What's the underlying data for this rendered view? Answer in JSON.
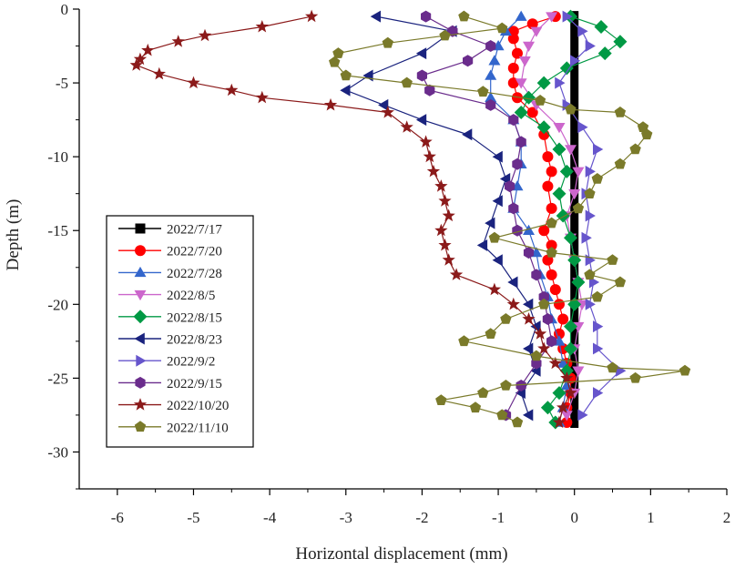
{
  "chart_data": {
    "type": "line",
    "title": "",
    "xlabel": "Horizontal displacement (mm)",
    "ylabel": "Depth (m)",
    "xlim": [
      -6.5,
      2
    ],
    "ylim": [
      -32.5,
      0
    ],
    "xticks": [
      -6,
      -5,
      -4,
      -3,
      -2,
      -1,
      0,
      1,
      2
    ],
    "yticks": [
      0,
      -5,
      -10,
      -15,
      -20,
      -25,
      -30
    ],
    "xtick_labels": [
      "-6",
      "-5",
      "-4",
      "-3",
      "-2",
      "-1",
      "0",
      "1",
      "2"
    ],
    "ytick_labels": [
      "0",
      "-5",
      "-10",
      "-15",
      "-20",
      "-25",
      "-30"
    ],
    "legend_position": "left-middle",
    "series": [
      {
        "name": "2022/7/17",
        "color": "#000000",
        "marker": "square",
        "points": [
          [
            0,
            -0.5
          ],
          [
            0,
            -28
          ]
        ]
      },
      {
        "name": "2022/7/20",
        "color": "#ff0000",
        "marker": "circle",
        "points": [
          [
            -0.25,
            -0.5
          ],
          [
            -0.55,
            -1
          ],
          [
            -0.8,
            -1.5
          ],
          [
            -0.8,
            -2
          ],
          [
            -0.75,
            -3
          ],
          [
            -0.8,
            -4
          ],
          [
            -0.8,
            -5
          ],
          [
            -0.75,
            -6
          ],
          [
            -0.55,
            -7
          ],
          [
            -0.4,
            -8.5
          ],
          [
            -0.35,
            -10
          ],
          [
            -0.3,
            -11
          ],
          [
            -0.35,
            -12
          ],
          [
            -0.3,
            -13.5
          ],
          [
            -0.4,
            -15
          ],
          [
            -0.3,
            -16
          ],
          [
            -0.35,
            -17
          ],
          [
            -0.3,
            -18
          ],
          [
            -0.25,
            -19
          ],
          [
            -0.2,
            -20
          ],
          [
            -0.15,
            -21
          ],
          [
            -0.2,
            -22
          ],
          [
            -0.15,
            -23
          ],
          [
            -0.1,
            -24
          ],
          [
            -0.05,
            -25
          ],
          [
            -0.05,
            -26
          ],
          [
            -0.1,
            -27
          ],
          [
            -0.1,
            -28
          ]
        ]
      },
      {
        "name": "2022/7/28",
        "color": "#3366cc",
        "marker": "triangle-up",
        "points": [
          [
            -0.7,
            -0.5
          ],
          [
            -0.9,
            -1.5
          ],
          [
            -1,
            -2.5
          ],
          [
            -1.05,
            -3.5
          ],
          [
            -1.1,
            -4.5
          ],
          [
            -1.1,
            -6
          ],
          [
            -0.8,
            -7.5
          ],
          [
            -0.7,
            -9
          ],
          [
            -0.7,
            -10.5
          ],
          [
            -0.75,
            -12
          ],
          [
            -0.8,
            -13.5
          ],
          [
            -0.6,
            -15
          ],
          [
            -0.5,
            -16.5
          ],
          [
            -0.45,
            -18
          ],
          [
            -0.35,
            -19.5
          ],
          [
            -0.3,
            -21
          ],
          [
            -0.2,
            -22.5
          ],
          [
            -0.15,
            -24
          ],
          [
            -0.1,
            -25.5
          ],
          [
            -0.15,
            -27
          ],
          [
            -0.2,
            -28
          ]
        ]
      },
      {
        "name": "2022/8/5",
        "color": "#cc66cc",
        "marker": "triangle-down",
        "points": [
          [
            -0.3,
            -0.5
          ],
          [
            -0.5,
            -1.5
          ],
          [
            -0.6,
            -2.5
          ],
          [
            -0.65,
            -3.5
          ],
          [
            -0.7,
            -5
          ],
          [
            -0.5,
            -6.5
          ],
          [
            -0.2,
            -8
          ],
          [
            -0.05,
            -9.5
          ],
          [
            0.05,
            -11
          ],
          [
            0,
            -12.5
          ],
          [
            -0.1,
            -14
          ],
          [
            -0.05,
            -15.5
          ],
          [
            0,
            -17
          ],
          [
            0.05,
            -18.5
          ],
          [
            0.1,
            -20
          ],
          [
            0.05,
            -21.5
          ],
          [
            0,
            -23
          ],
          [
            0.05,
            -24.5
          ],
          [
            0,
            -26
          ],
          [
            -0.1,
            -27.5
          ]
        ]
      },
      {
        "name": "2022/8/15",
        "color": "#009944",
        "marker": "diamond",
        "points": [
          [
            -0.05,
            -0.5
          ],
          [
            0.35,
            -1.2
          ],
          [
            0.6,
            -2.2
          ],
          [
            0.4,
            -3
          ],
          [
            -0.1,
            -4
          ],
          [
            -0.4,
            -5
          ],
          [
            -0.6,
            -6
          ],
          [
            -0.7,
            -7
          ],
          [
            -0.4,
            -8
          ],
          [
            -0.2,
            -9.5
          ],
          [
            -0.1,
            -11
          ],
          [
            -0.2,
            -12.5
          ],
          [
            -0.15,
            -14
          ],
          [
            -0.05,
            -15.5
          ],
          [
            0,
            -17
          ],
          [
            0.05,
            -18.5
          ],
          [
            0,
            -20
          ],
          [
            -0.05,
            -21.5
          ],
          [
            -0.05,
            -23
          ],
          [
            -0.1,
            -24.5
          ],
          [
            -0.2,
            -26
          ],
          [
            -0.35,
            -27
          ],
          [
            -0.25,
            -28
          ]
        ]
      },
      {
        "name": "2022/8/23",
        "color": "#1a237e",
        "marker": "triangle-left",
        "points": [
          [
            -2.6,
            -0.5
          ],
          [
            -1.6,
            -1.5
          ],
          [
            -2,
            -3
          ],
          [
            -2.7,
            -4.5
          ],
          [
            -3,
            -5.5
          ],
          [
            -2.5,
            -6.5
          ],
          [
            -2,
            -7.5
          ],
          [
            -1.4,
            -8.5
          ],
          [
            -1,
            -10
          ],
          [
            -0.9,
            -11.5
          ],
          [
            -1,
            -13
          ],
          [
            -1.1,
            -14.5
          ],
          [
            -1.2,
            -16
          ],
          [
            -1,
            -17
          ],
          [
            -0.8,
            -18.5
          ],
          [
            -0.6,
            -20
          ],
          [
            -0.5,
            -21.5
          ],
          [
            -0.6,
            -23
          ],
          [
            -0.5,
            -24.5
          ],
          [
            -0.7,
            -26
          ],
          [
            -0.6,
            -27.5
          ]
        ]
      },
      {
        "name": "2022/9/2",
        "color": "#6655cc",
        "marker": "triangle-right",
        "points": [
          [
            -0.1,
            -0.5
          ],
          [
            0.1,
            -1.5
          ],
          [
            0.2,
            -2.5
          ],
          [
            0,
            -3.5
          ],
          [
            -0.2,
            -5
          ],
          [
            -0.1,
            -6.5
          ],
          [
            0.1,
            -8
          ],
          [
            0.3,
            -9.5
          ],
          [
            0.2,
            -11
          ],
          [
            0.15,
            -12.5
          ],
          [
            0.2,
            -14
          ],
          [
            0.15,
            -15.5
          ],
          [
            0.2,
            -17
          ],
          [
            0.25,
            -18.5
          ],
          [
            0.2,
            -20
          ],
          [
            0.3,
            -21.5
          ],
          [
            0.3,
            -23
          ],
          [
            0.6,
            -24.5
          ],
          [
            0.3,
            -26
          ],
          [
            0.1,
            -27.5
          ]
        ]
      },
      {
        "name": "2022/9/15",
        "color": "#6a2c8c",
        "marker": "hexagon",
        "points": [
          [
            -1.95,
            -0.5
          ],
          [
            -1.6,
            -1.5
          ],
          [
            -1.1,
            -2.5
          ],
          [
            -1.4,
            -3.5
          ],
          [
            -2,
            -4.5
          ],
          [
            -1.9,
            -5.5
          ],
          [
            -1.1,
            -6.5
          ],
          [
            -0.8,
            -7.5
          ],
          [
            -0.7,
            -9
          ],
          [
            -0.75,
            -10.5
          ],
          [
            -0.85,
            -12
          ],
          [
            -0.8,
            -13.5
          ],
          [
            -0.75,
            -15
          ],
          [
            -0.6,
            -16.5
          ],
          [
            -0.5,
            -18
          ],
          [
            -0.4,
            -19.5
          ],
          [
            -0.35,
            -21
          ],
          [
            -0.3,
            -22.5
          ],
          [
            -0.5,
            -24
          ],
          [
            -0.7,
            -25.5
          ],
          [
            -0.9,
            -27.5
          ]
        ]
      },
      {
        "name": "2022/10/20",
        "color": "#8b1a1a",
        "marker": "star",
        "points": [
          [
            -3.45,
            -0.5
          ],
          [
            -4.1,
            -1.2
          ],
          [
            -4.85,
            -1.8
          ],
          [
            -5.2,
            -2.2
          ],
          [
            -5.6,
            -2.8
          ],
          [
            -5.7,
            -3.4
          ],
          [
            -5.75,
            -3.8
          ],
          [
            -5.45,
            -4.4
          ],
          [
            -5,
            -5
          ],
          [
            -4.5,
            -5.5
          ],
          [
            -4.1,
            -6
          ],
          [
            -3.2,
            -6.5
          ],
          [
            -2.45,
            -7
          ],
          [
            -2.2,
            -8
          ],
          [
            -1.95,
            -9
          ],
          [
            -1.9,
            -10
          ],
          [
            -1.85,
            -11
          ],
          [
            -1.75,
            -12
          ],
          [
            -1.7,
            -13
          ],
          [
            -1.65,
            -14
          ],
          [
            -1.75,
            -15
          ],
          [
            -1.7,
            -16
          ],
          [
            -1.65,
            -17
          ],
          [
            -1.55,
            -18
          ],
          [
            -1.05,
            -19
          ],
          [
            -0.8,
            -20
          ],
          [
            -0.6,
            -21
          ],
          [
            -0.45,
            -22
          ],
          [
            -0.4,
            -23
          ],
          [
            -0.25,
            -24
          ],
          [
            -0.1,
            -25
          ],
          [
            -0.05,
            -26
          ],
          [
            -0.15,
            -27
          ],
          [
            -0.2,
            -28
          ]
        ]
      },
      {
        "name": "2022/11/10",
        "color": "#7a7a2a",
        "marker": "pentagon",
        "points": [
          [
            -1.45,
            -0.5
          ],
          [
            -0.95,
            -1.3
          ],
          [
            -1.7,
            -1.8
          ],
          [
            -2.45,
            -2.3
          ],
          [
            -3.1,
            -3
          ],
          [
            -3.15,
            -3.6
          ],
          [
            -3,
            -4.5
          ],
          [
            -2.2,
            -5
          ],
          [
            -1.2,
            -5.6
          ],
          [
            -0.45,
            -6.2
          ],
          [
            -0.05,
            -6.8
          ],
          [
            0.6,
            -7
          ],
          [
            0.9,
            -8
          ],
          [
            0.95,
            -8.5
          ],
          [
            0.8,
            -9.5
          ],
          [
            0.6,
            -10.5
          ],
          [
            0.3,
            -11.5
          ],
          [
            0.2,
            -12.5
          ],
          [
            0.05,
            -13.5
          ],
          [
            -0.3,
            -14.5
          ],
          [
            -1.05,
            -15.5
          ],
          [
            -0.3,
            -16.5
          ],
          [
            0.5,
            -17
          ],
          [
            0.2,
            -18
          ],
          [
            0.6,
            -18.5
          ],
          [
            0.3,
            -19.5
          ],
          [
            -0.4,
            -20
          ],
          [
            -0.9,
            -21
          ],
          [
            -1.1,
            -22
          ],
          [
            -1.45,
            -22.5
          ],
          [
            -0.5,
            -23.5
          ],
          [
            0.5,
            -24.3
          ],
          [
            1.45,
            -24.5
          ],
          [
            0.8,
            -25
          ],
          [
            -0.9,
            -25.5
          ],
          [
            -1.2,
            -26
          ],
          [
            -1.75,
            -26.5
          ],
          [
            -1.3,
            -27
          ],
          [
            -0.95,
            -27.5
          ],
          [
            -0.75,
            -28
          ]
        ]
      }
    ]
  }
}
